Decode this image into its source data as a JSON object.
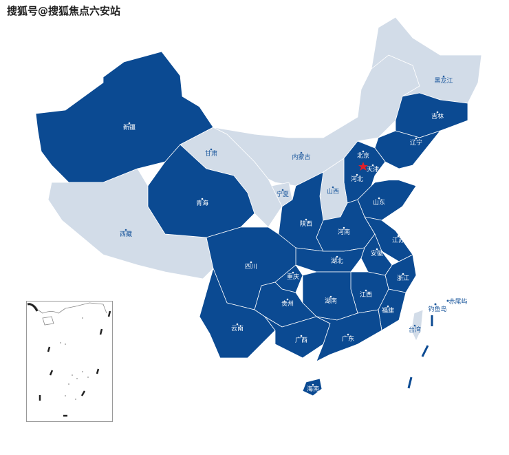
{
  "watermark": "搜狐号@搜狐焦点六安站",
  "colors": {
    "highlight": "#0b4a92",
    "base": "#d2dce8",
    "label_dark": "#ffffff",
    "label_light": "#1f5a9e",
    "capital_star": "#e0202a"
  },
  "provinces": [
    {
      "name": "新疆",
      "highlighted": true
    },
    {
      "name": "西藏",
      "highlighted": false
    },
    {
      "name": "青海",
      "highlighted": true
    },
    {
      "name": "甘肃",
      "highlighted": false
    },
    {
      "name": "内蒙古",
      "highlighted": false
    },
    {
      "name": "黑龙江",
      "highlighted": false
    },
    {
      "name": "吉林",
      "highlighted": true
    },
    {
      "name": "辽宁",
      "highlighted": true
    },
    {
      "name": "河北",
      "highlighted": true
    },
    {
      "name": "北京",
      "highlighted": true
    },
    {
      "name": "天津",
      "highlighted": true
    },
    {
      "name": "山西",
      "highlighted": false
    },
    {
      "name": "宁夏",
      "highlighted": false
    },
    {
      "name": "陕西",
      "highlighted": true
    },
    {
      "name": "山东",
      "highlighted": true
    },
    {
      "name": "河南",
      "highlighted": true
    },
    {
      "name": "江苏",
      "highlighted": true
    },
    {
      "name": "安徽",
      "highlighted": true
    },
    {
      "name": "湖北",
      "highlighted": true
    },
    {
      "name": "四川",
      "highlighted": true
    },
    {
      "name": "重庆",
      "highlighted": true
    },
    {
      "name": "浙江",
      "highlighted": true
    },
    {
      "name": "江西",
      "highlighted": true
    },
    {
      "name": "湖南",
      "highlighted": true
    },
    {
      "name": "贵州",
      "highlighted": true
    },
    {
      "name": "福建",
      "highlighted": true
    },
    {
      "name": "云南",
      "highlighted": true
    },
    {
      "name": "广西",
      "highlighted": true
    },
    {
      "name": "广东",
      "highlighted": true
    },
    {
      "name": "海南",
      "highlighted": true
    },
    {
      "name": "台湾",
      "highlighted": false
    }
  ],
  "islands": [
    "钓鱼岛",
    "赤尾屿"
  ]
}
